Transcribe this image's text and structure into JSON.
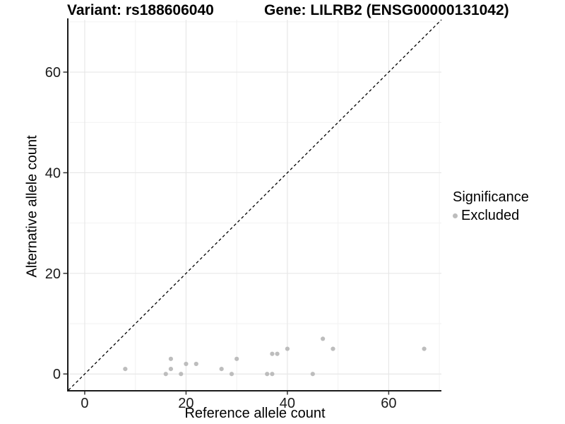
{
  "header": {
    "variant_title": "Variant: rs188606040",
    "gene_title": "Gene: LILRB2 (ENSG00000131042)"
  },
  "chart_data": {
    "type": "scatter",
    "xlabel": "Reference allele count",
    "ylabel": "Alternative allele count",
    "xlim": [
      -3.2,
      70.4
    ],
    "ylim": [
      -3.2,
      70.4
    ],
    "xticks": [
      0,
      20,
      40,
      60
    ],
    "yticks": [
      0,
      20,
      40,
      60
    ],
    "minor_xticks": [
      10,
      30,
      50,
      70
    ],
    "minor_yticks": [
      10,
      30,
      50,
      70
    ],
    "grid": true,
    "identity_line": {
      "style": "dashed",
      "color": "#000000"
    },
    "series": [
      {
        "name": "Excluded",
        "color": "#bdbdbd",
        "marker": "circle",
        "points": [
          [
            8,
            1
          ],
          [
            16,
            0
          ],
          [
            17,
            1
          ],
          [
            17,
            3
          ],
          [
            19,
            0
          ],
          [
            20,
            2
          ],
          [
            22,
            2
          ],
          [
            27,
            1
          ],
          [
            29,
            0
          ],
          [
            30,
            3
          ],
          [
            36,
            0
          ],
          [
            37,
            0
          ],
          [
            37,
            4
          ],
          [
            38,
            4
          ],
          [
            40,
            5
          ],
          [
            45,
            0
          ],
          [
            47,
            7
          ],
          [
            49,
            5
          ],
          [
            67,
            5
          ]
        ]
      }
    ],
    "legend": {
      "title": "Significance",
      "position": "right",
      "items": [
        {
          "label": "Excluded",
          "color": "#bdbdbd"
        }
      ]
    }
  },
  "colors": {
    "background": "#ffffff",
    "grid_major": "#e7e7e7",
    "grid_minor": "#f2f2f2",
    "axis_line": "#1a1a1a",
    "tick_mark": "#333333",
    "tick_label": "#1a1a1a",
    "point": "#bdbdbd",
    "identity_line": "#000000"
  }
}
